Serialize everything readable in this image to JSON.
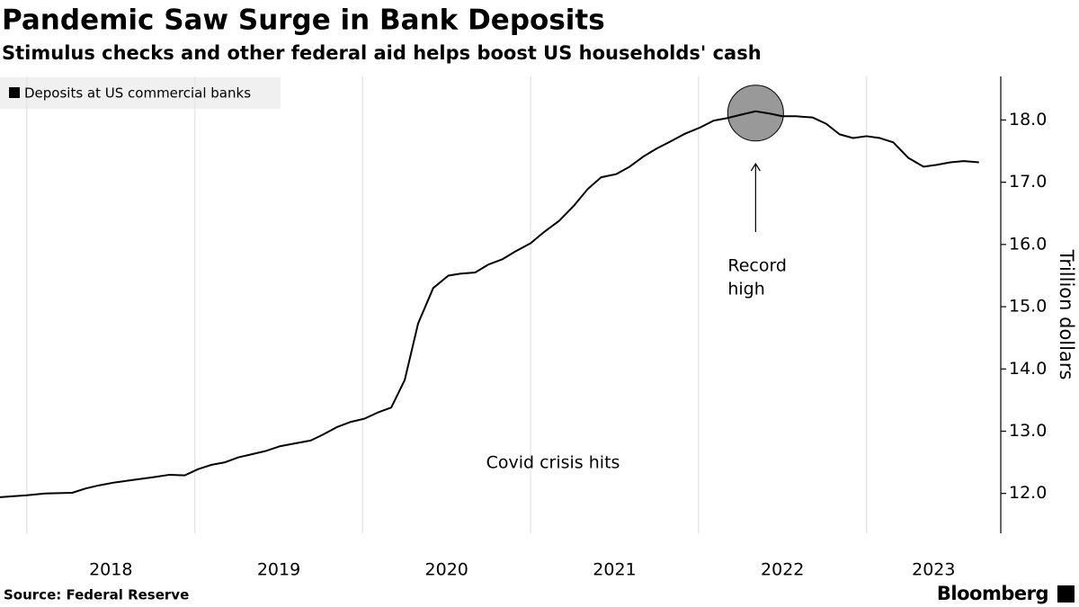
{
  "chart_data": {
    "type": "line",
    "title": "Pandemic Saw Surge in Bank Deposits",
    "subtitle": "Stimulus checks and other federal aid helps boost US households' cash",
    "y_label": "Trillion dollars",
    "source": "Source: Federal Reserve",
    "brand": "Bloomberg",
    "legend": "top-left",
    "grid": "x",
    "x": [
      2017.84,
      2018.0,
      2018.11,
      2018.27,
      2018.35,
      2018.43,
      2018.51,
      2018.64,
      2018.75,
      2018.85,
      2018.94,
      2019.02,
      2019.1,
      2019.18,
      2019.26,
      2019.34,
      2019.42,
      2019.51,
      2019.61,
      2019.69,
      2019.76,
      2019.85,
      2019.93,
      2020.01,
      2020.09,
      2020.17,
      2020.25,
      2020.33,
      2020.42,
      2020.51,
      2020.58,
      2020.67,
      2020.75,
      2020.83,
      2020.91,
      2021.0,
      2021.08,
      2021.17,
      2021.26,
      2021.34,
      2021.42,
      2021.51,
      2021.59,
      2021.67,
      2021.75,
      2021.83,
      2021.92,
      2022.01,
      2022.09,
      2022.17,
      2022.26,
      2022.34,
      2022.43,
      2022.5,
      2022.58,
      2022.68,
      2022.76,
      2022.84,
      2022.92,
      2023.0,
      2023.08,
      2023.16,
      2023.25,
      2023.34,
      2023.42,
      2023.5,
      2023.58,
      2023.67
    ],
    "series": [
      {
        "name": "Deposits at US commercial banks",
        "color": "#000000",
        "values": [
          11.94,
          11.97,
          12.0,
          12.01,
          12.08,
          12.13,
          12.17,
          12.22,
          12.26,
          12.3,
          12.29,
          12.39,
          12.46,
          12.5,
          12.58,
          12.63,
          12.68,
          12.76,
          12.81,
          12.85,
          12.94,
          13.07,
          13.15,
          13.2,
          13.3,
          13.38,
          13.82,
          14.73,
          15.3,
          15.5,
          15.53,
          15.55,
          15.68,
          15.76,
          15.89,
          16.02,
          16.2,
          16.38,
          16.63,
          16.89,
          17.08,
          17.13,
          17.25,
          17.41,
          17.54,
          17.65,
          17.78,
          17.88,
          17.99,
          18.03,
          18.09,
          18.14,
          18.1,
          18.06,
          18.06,
          18.04,
          17.94,
          17.77,
          17.71,
          17.74,
          17.71,
          17.64,
          17.39,
          17.25,
          17.28,
          17.32,
          17.34,
          17.32
        ]
      }
    ],
    "xlim": [
      2017.84,
      2023.8
    ],
    "xticks": [
      2018,
      2019,
      2020,
      2021,
      2022,
      2023
    ],
    "ylim": [
      11.36,
      18.7
    ],
    "yticks": [
      {
        "value": 12,
        "label": "12.0"
      },
      {
        "value": 13,
        "label": "13.0"
      },
      {
        "value": 14,
        "label": "14.0"
      },
      {
        "value": 15,
        "label": "15.0"
      },
      {
        "value": 16,
        "label": "16.0"
      },
      {
        "value": 17,
        "label": "17.0"
      },
      {
        "value": 18,
        "label": "18.0"
      }
    ],
    "annotations": [
      {
        "lines": [
          "Record",
          "high"
        ],
        "x": 2022.34,
        "y": 18.14
      },
      {
        "lines": [
          "Covid crisis hits"
        ],
        "x": 2020.25,
        "y": 13.82
      }
    ]
  }
}
